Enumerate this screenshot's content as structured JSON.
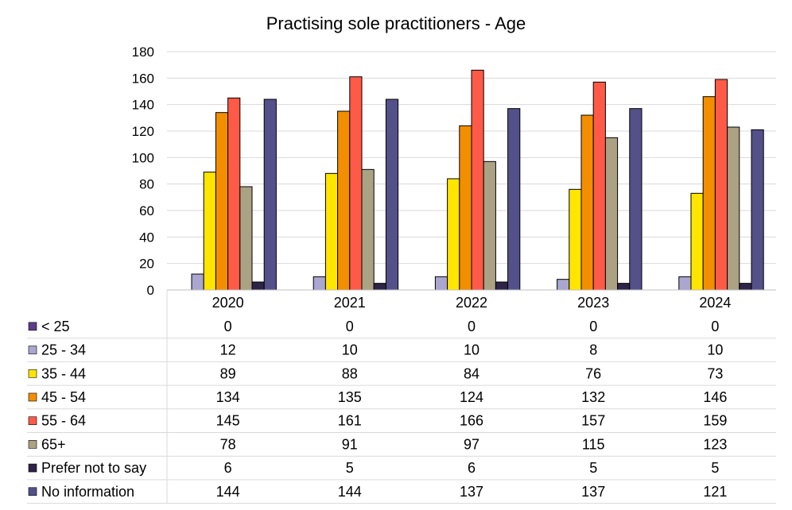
{
  "chart_data": {
    "type": "bar",
    "title": "Practising sole practitioners - Age",
    "xlabel": "",
    "ylabel": "",
    "ylim": [
      0,
      180
    ],
    "yticks": [
      0,
      20,
      40,
      60,
      80,
      100,
      120,
      140,
      160,
      180
    ],
    "grid": true,
    "legend": "data-table-below",
    "categories": [
      "2020",
      "2021",
      "2022",
      "2023",
      "2024"
    ],
    "series": [
      {
        "name": "< 25",
        "color": "#5b3f86",
        "values": [
          0,
          0,
          0,
          0,
          0
        ]
      },
      {
        "name": "25 - 34",
        "color": "#a9a7cf",
        "values": [
          12,
          10,
          10,
          8,
          10
        ]
      },
      {
        "name": "35 - 44",
        "color": "#ffe500",
        "values": [
          89,
          88,
          84,
          76,
          73
        ]
      },
      {
        "name": "45 - 54",
        "color": "#f28e00",
        "values": [
          134,
          135,
          124,
          132,
          146
        ]
      },
      {
        "name": "55 - 64",
        "color": "#ff5a47",
        "values": [
          145,
          161,
          166,
          157,
          159
        ]
      },
      {
        "name": "65+",
        "color": "#aaa283",
        "values": [
          78,
          91,
          97,
          115,
          123
        ]
      },
      {
        "name": "Prefer not to say",
        "color": "#2e2447",
        "values": [
          6,
          5,
          6,
          5,
          5
        ]
      },
      {
        "name": "No information",
        "color": "#54508a",
        "values": [
          144,
          144,
          137,
          137,
          121
        ]
      }
    ]
  }
}
